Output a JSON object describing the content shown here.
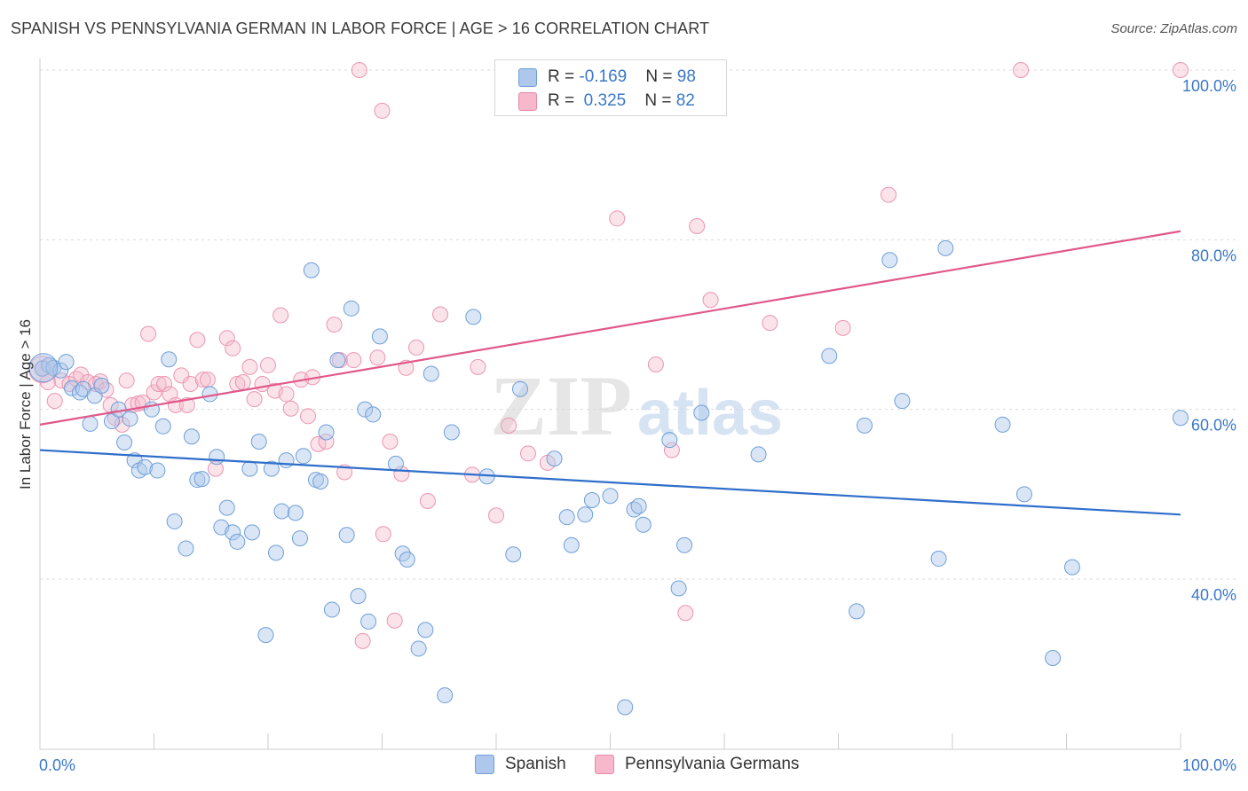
{
  "header": {
    "title": "SPANISH VS PENNSYLVANIA GERMAN IN LABOR FORCE | AGE > 16 CORRELATION CHART",
    "source": "Source: ZipAtlas.com"
  },
  "legend_top": {
    "rows": [
      {
        "r_label": "R = ",
        "r_value": "-0.169",
        "n_label": "N = ",
        "n_value": "98",
        "color": "#aec7ec"
      },
      {
        "r_label": "R = ",
        "r_value": "0.325",
        "n_label": "N = ",
        "n_value": "82",
        "color": "#f6b8ca"
      }
    ]
  },
  "legend_bottom": {
    "items": [
      {
        "label": "Spanish",
        "color": "#aec7ec"
      },
      {
        "label": "Pennsylvania Germans",
        "color": "#f6b8ca"
      }
    ]
  },
  "watermark": {
    "zip": "ZIP",
    "atlas": "atlas"
  },
  "chart_data": {
    "type": "scatter",
    "title": "SPANISH VS PENNSYLVANIA GERMAN IN LABOR FORCE | AGE > 16 CORRELATION CHART",
    "xlabel": "",
    "ylabel": "In Labor Force | Age > 16",
    "xlim": [
      0,
      100
    ],
    "ylim": [
      22,
      102
    ],
    "x_tick_labels": [
      "0.0%",
      "100.0%"
    ],
    "y_ticks": [
      40,
      60,
      80,
      100
    ],
    "y_tick_labels": [
      "40.0%",
      "60.0%",
      "80.0%",
      "100.0%"
    ],
    "grid": "horizontal dashed",
    "legend": "top-center",
    "series": [
      {
        "name": "Spanish",
        "color": "#3a78c9",
        "fill": "#aec7ec",
        "r": -0.169,
        "n": 98,
        "trend": {
          "x": [
            0,
            100
          ],
          "y": [
            55.2,
            47.6
          ]
        },
        "points": [
          [
            0.2,
            64.8
          ],
          [
            0.8,
            65.2
          ],
          [
            1.2,
            64.9
          ],
          [
            1.8,
            64.6
          ],
          [
            2.3,
            65.6
          ],
          [
            2.8,
            62.5
          ],
          [
            3.5,
            62.0
          ],
          [
            3.8,
            62.4
          ],
          [
            4.4,
            58.3
          ],
          [
            4.8,
            61.6
          ],
          [
            5.4,
            62.8
          ],
          [
            6.3,
            58.6
          ],
          [
            6.9,
            60.0
          ],
          [
            7.4,
            56.1
          ],
          [
            7.9,
            58.9
          ],
          [
            8.3,
            54.0
          ],
          [
            8.7,
            52.8
          ],
          [
            9.2,
            53.2
          ],
          [
            9.8,
            60.0
          ],
          [
            10.3,
            52.8
          ],
          [
            10.8,
            58.0
          ],
          [
            11.3,
            65.9
          ],
          [
            11.8,
            46.8
          ],
          [
            12.8,
            43.6
          ],
          [
            13.3,
            56.8
          ],
          [
            13.8,
            51.7
          ],
          [
            14.2,
            51.8
          ],
          [
            14.9,
            61.8
          ],
          [
            15.5,
            54.4
          ],
          [
            15.9,
            46.1
          ],
          [
            16.4,
            48.4
          ],
          [
            16.9,
            45.5
          ],
          [
            17.3,
            44.4
          ],
          [
            18.4,
            53.0
          ],
          [
            18.6,
            45.5
          ],
          [
            19.2,
            56.2
          ],
          [
            19.8,
            33.4
          ],
          [
            20.3,
            53.0
          ],
          [
            20.7,
            43.1
          ],
          [
            21.2,
            48.0
          ],
          [
            21.6,
            54.0
          ],
          [
            22.4,
            47.8
          ],
          [
            22.8,
            44.8
          ],
          [
            23.1,
            54.5
          ],
          [
            23.8,
            76.4
          ],
          [
            24.2,
            51.7
          ],
          [
            24.6,
            51.5
          ],
          [
            25.1,
            57.3
          ],
          [
            25.6,
            36.4
          ],
          [
            26.1,
            65.8
          ],
          [
            26.9,
            45.2
          ],
          [
            27.3,
            71.9
          ],
          [
            27.9,
            38.0
          ],
          [
            28.5,
            60.0
          ],
          [
            28.8,
            35.0
          ],
          [
            29.2,
            59.4
          ],
          [
            29.8,
            68.6
          ],
          [
            31.2,
            53.6
          ],
          [
            31.8,
            43.0
          ],
          [
            32.2,
            42.3
          ],
          [
            33.2,
            31.8
          ],
          [
            33.8,
            34.0
          ],
          [
            34.3,
            64.2
          ],
          [
            35.5,
            26.3
          ],
          [
            36.1,
            57.3
          ],
          [
            38.0,
            70.9
          ],
          [
            39.2,
            52.1
          ],
          [
            41.5,
            42.9
          ],
          [
            42.1,
            62.4
          ],
          [
            45.1,
            54.2
          ],
          [
            46.2,
            47.3
          ],
          [
            46.6,
            44.0
          ],
          [
            47.8,
            47.6
          ],
          [
            48.4,
            49.3
          ],
          [
            50.0,
            49.8
          ],
          [
            51.3,
            24.9
          ],
          [
            52.1,
            48.2
          ],
          [
            52.5,
            48.6
          ],
          [
            52.9,
            46.4
          ],
          [
            55.2,
            56.4
          ],
          [
            56.0,
            38.9
          ],
          [
            56.5,
            44.0
          ],
          [
            58.0,
            59.6
          ],
          [
            63.0,
            54.7
          ],
          [
            69.2,
            66.3
          ],
          [
            71.6,
            36.2
          ],
          [
            72.3,
            58.1
          ],
          [
            74.5,
            77.6
          ],
          [
            75.6,
            61.0
          ],
          [
            78.8,
            42.4
          ],
          [
            79.4,
            79.0
          ],
          [
            84.4,
            58.2
          ],
          [
            86.3,
            50.0
          ],
          [
            88.8,
            30.7
          ],
          [
            90.5,
            41.4
          ],
          [
            100.0,
            59.0
          ]
        ]
      },
      {
        "name": "Pennsylvania Germans",
        "color": "#e0588a",
        "fill": "#f6b8ca",
        "r": 0.325,
        "n": 82,
        "trend": {
          "x": [
            0,
            100
          ],
          "y": [
            58.2,
            81.0
          ]
        },
        "points": [
          [
            0.3,
            64.9
          ],
          [
            0.7,
            63.2
          ],
          [
            1.3,
            61.0
          ],
          [
            1.9,
            63.4
          ],
          [
            2.6,
            63.0
          ],
          [
            3.2,
            63.6
          ],
          [
            3.6,
            64.1
          ],
          [
            4.2,
            63.2
          ],
          [
            4.9,
            63.0
          ],
          [
            5.3,
            63.3
          ],
          [
            5.8,
            62.3
          ],
          [
            6.2,
            60.5
          ],
          [
            6.6,
            59.0
          ],
          [
            7.2,
            58.2
          ],
          [
            7.6,
            63.4
          ],
          [
            8.1,
            60.5
          ],
          [
            8.6,
            60.7
          ],
          [
            9.0,
            60.8
          ],
          [
            9.5,
            68.9
          ],
          [
            10.0,
            62.0
          ],
          [
            10.4,
            63.0
          ],
          [
            10.9,
            63.0
          ],
          [
            11.4,
            61.8
          ],
          [
            11.9,
            60.5
          ],
          [
            12.4,
            64.0
          ],
          [
            12.9,
            60.5
          ],
          [
            13.2,
            63.0
          ],
          [
            13.8,
            68.2
          ],
          [
            14.3,
            63.5
          ],
          [
            14.7,
            63.5
          ],
          [
            15.4,
            53.0
          ],
          [
            16.4,
            68.4
          ],
          [
            16.9,
            67.2
          ],
          [
            17.3,
            63.0
          ],
          [
            17.8,
            63.2
          ],
          [
            18.4,
            65.0
          ],
          [
            18.8,
            61.2
          ],
          [
            19.5,
            63.0
          ],
          [
            20.0,
            65.2
          ],
          [
            20.6,
            62.2
          ],
          [
            21.1,
            71.1
          ],
          [
            21.6,
            61.8
          ],
          [
            22.0,
            60.1
          ],
          [
            22.9,
            63.5
          ],
          [
            23.5,
            59.2
          ],
          [
            23.9,
            63.8
          ],
          [
            24.4,
            55.9
          ],
          [
            25.1,
            56.2
          ],
          [
            25.8,
            70.0
          ],
          [
            26.3,
            65.8
          ],
          [
            26.7,
            52.6
          ],
          [
            27.5,
            65.8
          ],
          [
            28.3,
            32.7
          ],
          [
            29.6,
            66.1
          ],
          [
            30.1,
            45.3
          ],
          [
            30.7,
            56.2
          ],
          [
            31.1,
            35.1
          ],
          [
            31.7,
            52.4
          ],
          [
            32.1,
            64.9
          ],
          [
            33.0,
            67.3
          ],
          [
            34.0,
            49.2
          ],
          [
            35.1,
            71.2
          ],
          [
            37.9,
            52.3
          ],
          [
            38.4,
            65.0
          ],
          [
            40.0,
            47.5
          ],
          [
            41.1,
            58.1
          ],
          [
            42.8,
            54.8
          ],
          [
            44.5,
            53.7
          ],
          [
            47.5,
            96.4
          ],
          [
            50.6,
            82.5
          ],
          [
            54.0,
            65.3
          ],
          [
            55.4,
            55.2
          ],
          [
            56.6,
            36.0
          ],
          [
            57.6,
            81.6
          ],
          [
            58.8,
            72.9
          ],
          [
            64.0,
            70.2
          ],
          [
            70.4,
            69.6
          ],
          [
            74.4,
            85.3
          ],
          [
            28.0,
            100.0
          ],
          [
            30.0,
            95.2
          ],
          [
            86.0,
            100.0
          ],
          [
            100.0,
            100.0
          ]
        ]
      }
    ]
  }
}
